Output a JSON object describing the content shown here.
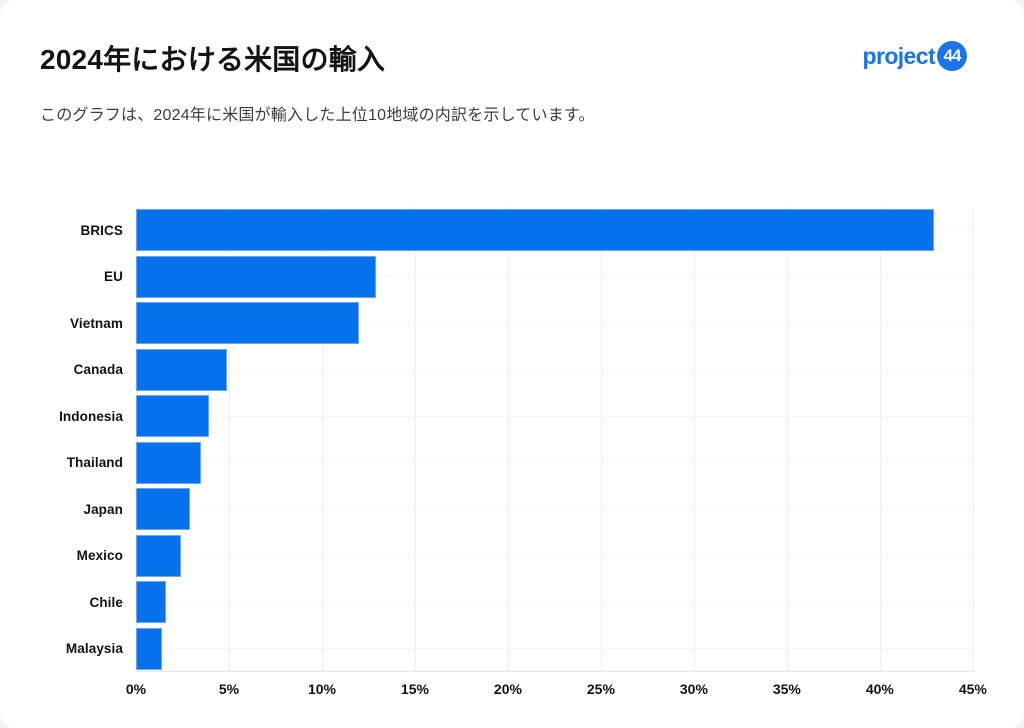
{
  "page": {
    "title": "2024年における米国の輸入",
    "subtitle": "このグラフは、2024年に米国が輸入した上位10地域の内訳を示しています。"
  },
  "logo": {
    "text": "project",
    "badge": "44"
  },
  "colors": {
    "bar_fill": "#0572EC",
    "brand_blue": "#1C74E9",
    "gridline": "#EFEFEF",
    "title_text": "#141414",
    "subtitle_text": "#3D3D3D"
  },
  "chart_data": {
    "type": "bar",
    "orientation": "horizontal",
    "title": "2024年における米国の輸入",
    "categories": [
      "BRICS",
      "EU",
      "Vietnam",
      "Canada",
      "Indonesia",
      "Thailand",
      "Japan",
      "Mexico",
      "Chile",
      "Malaysia"
    ],
    "values": [
      42.9,
      12.9,
      12.0,
      4.9,
      3.9,
      3.5,
      2.9,
      2.4,
      1.6,
      1.4
    ],
    "unit": "%",
    "x_tick_labels": [
      "0%",
      "5%",
      "10%",
      "15%",
      "20%",
      "25%",
      "30%",
      "35%",
      "40%",
      "45%"
    ],
    "x_tick_values": [
      0,
      5,
      10,
      15,
      20,
      25,
      30,
      35,
      40,
      45
    ],
    "xlim": [
      0,
      45.6
    ],
    "grid": true,
    "legend": false
  }
}
